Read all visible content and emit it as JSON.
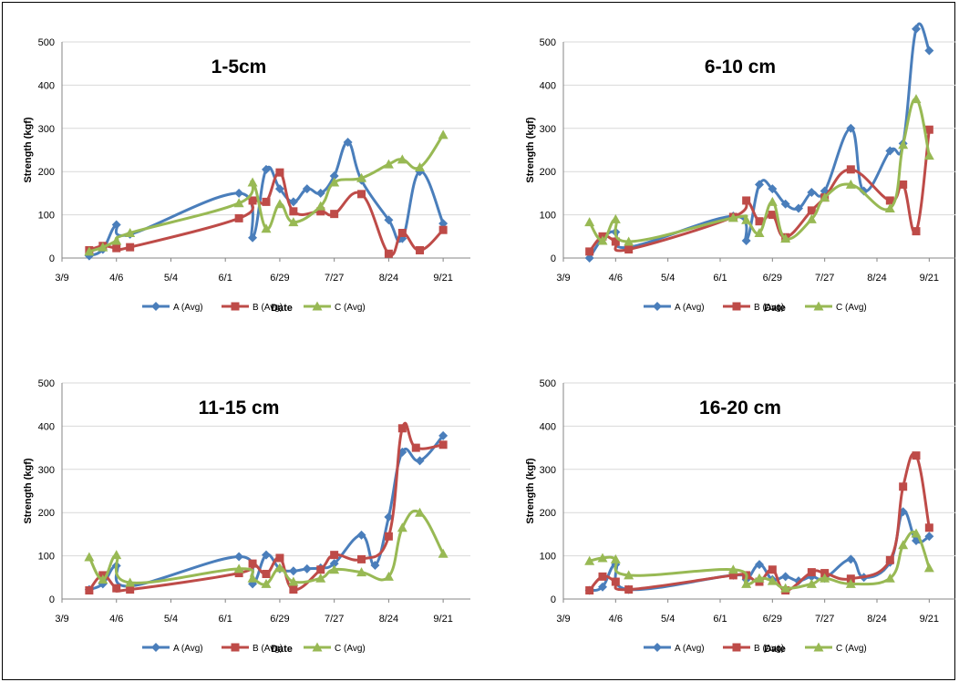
{
  "colors": {
    "A": "#4A7EBB",
    "B": "#BE4B48",
    "C": "#98B954",
    "grid": "#d9d9d9",
    "axis": "#868686"
  },
  "chart_data": [
    {
      "type": "line",
      "title": "1-5cm",
      "xlabel": "Date",
      "ylabel": "Strength (kgf)",
      "ylim": [
        0,
        500
      ],
      "yticks": [
        "0",
        "100",
        "200",
        "300",
        "400",
        "500"
      ],
      "xlim": [
        "3/9",
        "10/5"
      ],
      "xticks": [
        "3/9",
        "4/6",
        "5/4",
        "6/1",
        "6/29",
        "7/27",
        "8/24",
        "9/21"
      ],
      "grid": "horizontal",
      "legend": "bottom",
      "series": [
        {
          "name": "A (Avg)",
          "x": [
            "3/23",
            "3/30",
            "4/6",
            "4/13",
            "6/8",
            "6/15",
            "6/22",
            "6/29",
            "7/6",
            "7/13",
            "7/20",
            "7/27",
            "8/3",
            "8/10",
            "8/24",
            "8/31",
            "9/9",
            "9/21"
          ],
          "y": [
            5,
            20,
            77,
            55,
            150,
            47,
            205,
            160,
            130,
            160,
            150,
            190,
            268,
            180,
            88,
            45,
            200,
            80
          ]
        },
        {
          "name": "B (Avg)",
          "x": [
            "3/23",
            "3/30",
            "4/6",
            "4/13",
            "6/8",
            "6/15",
            "6/22",
            "6/29",
            "7/6",
            "7/20",
            "7/27",
            "8/10",
            "8/24",
            "8/31",
            "9/9",
            "9/21"
          ],
          "y": [
            18,
            28,
            23,
            25,
            92,
            133,
            130,
            198,
            108,
            108,
            102,
            148,
            10,
            58,
            18,
            65
          ]
        },
        {
          "name": "C (Avg)",
          "x": [
            "3/23",
            "3/30",
            "4/6",
            "4/13",
            "6/8",
            "6/15",
            "6/22",
            "6/29",
            "7/6",
            "7/20",
            "7/27",
            "8/10",
            "8/24",
            "8/31",
            "9/9",
            "9/21"
          ],
          "y": [
            15,
            25,
            40,
            58,
            127,
            175,
            68,
            125,
            83,
            120,
            175,
            185,
            217,
            228,
            210,
            285
          ]
        }
      ]
    },
    {
      "type": "line",
      "title": "6-10 cm",
      "xlabel": "Date",
      "ylabel": "Strength (kgf)",
      "ylim": [
        0,
        500
      ],
      "yticks": [
        "0",
        "100",
        "200",
        "300",
        "400",
        "500"
      ],
      "xlim": [
        "3/9",
        "10/5"
      ],
      "xticks": [
        "3/9",
        "4/6",
        "5/4",
        "6/1",
        "6/29",
        "7/27",
        "8/24",
        "9/21"
      ],
      "grid": "horizontal",
      "legend": "bottom",
      "series": [
        {
          "name": "A (Avg)",
          "x": [
            "3/23",
            "3/30",
            "4/6",
            "4/13",
            "6/8",
            "6/15",
            "6/22",
            "6/29",
            "7/6",
            "7/13",
            "7/20",
            "7/27",
            "8/10",
            "8/17",
            "8/31",
            "9/7",
            "9/14",
            "9/21"
          ],
          "y": [
            0,
            45,
            60,
            25,
            97,
            40,
            170,
            160,
            125,
            115,
            152,
            155,
            300,
            155,
            248,
            265,
            530,
            480
          ]
        },
        {
          "name": "B (Avg)",
          "x": [
            "3/23",
            "3/30",
            "4/6",
            "4/13",
            "6/8",
            "6/15",
            "6/22",
            "6/29",
            "7/6",
            "7/20",
            "7/27",
            "8/10",
            "8/31",
            "9/7",
            "9/14",
            "9/21"
          ],
          "y": [
            15,
            50,
            38,
            20,
            95,
            133,
            85,
            100,
            48,
            110,
            140,
            205,
            133,
            170,
            62,
            297
          ]
        },
        {
          "name": "C (Avg)",
          "x": [
            "3/23",
            "3/30",
            "4/6",
            "4/13",
            "6/8",
            "6/15",
            "6/22",
            "6/29",
            "7/6",
            "7/20",
            "7/27",
            "8/10",
            "8/31",
            "9/7",
            "9/14",
            "9/21"
          ],
          "y": [
            83,
            40,
            90,
            38,
            93,
            88,
            58,
            130,
            45,
            90,
            140,
            170,
            115,
            262,
            368,
            237
          ]
        }
      ]
    },
    {
      "type": "line",
      "title": "11-15 cm",
      "xlabel": "Date",
      "ylabel": "Strength (kgf)",
      "ylim": [
        0,
        500
      ],
      "yticks": [
        "0",
        "100",
        "200",
        "300",
        "400",
        "500"
      ],
      "xlim": [
        "3/9",
        "10/5"
      ],
      "xticks": [
        "3/9",
        "4/6",
        "5/4",
        "6/1",
        "6/29",
        "7/27",
        "8/24",
        "9/21"
      ],
      "grid": "horizontal",
      "legend": "bottom",
      "series": [
        {
          "name": "A (Avg)",
          "x": [
            "3/23",
            "3/30",
            "4/6",
            "4/13",
            "6/8",
            "6/15",
            "6/22",
            "6/29",
            "7/6",
            "7/13",
            "7/20",
            "7/27",
            "8/10",
            "8/17",
            "8/24",
            "8/31",
            "9/9",
            "9/21"
          ],
          "y": [
            22,
            35,
            77,
            30,
            98,
            35,
            102,
            70,
            65,
            70,
            72,
            82,
            148,
            78,
            190,
            340,
            320,
            378
          ]
        },
        {
          "name": "B (Avg)",
          "x": [
            "3/23",
            "3/30",
            "4/6",
            "4/13",
            "6/8",
            "6/15",
            "6/22",
            "6/29",
            "7/6",
            "7/20",
            "7/27",
            "8/10",
            "8/24",
            "8/31",
            "9/7",
            "9/21"
          ],
          "y": [
            20,
            55,
            25,
            22,
            60,
            82,
            58,
            95,
            22,
            68,
            102,
            92,
            145,
            395,
            350,
            357
          ]
        },
        {
          "name": "C (Avg)",
          "x": [
            "3/23",
            "3/30",
            "4/6",
            "4/13",
            "6/8",
            "6/15",
            "6/22",
            "6/29",
            "7/6",
            "7/20",
            "7/27",
            "8/10",
            "8/24",
            "8/31",
            "9/9",
            "9/21"
          ],
          "y": [
            97,
            45,
            102,
            38,
            70,
            48,
            35,
            72,
            40,
            48,
            68,
            62,
            52,
            165,
            200,
            105
          ]
        }
      ]
    },
    {
      "type": "line",
      "title": "16-20 cm",
      "xlabel": "Date",
      "ylabel": "Strength (kgf)",
      "ylim": [
        0,
        500
      ],
      "yticks": [
        "0",
        "100",
        "200",
        "300",
        "400",
        "500"
      ],
      "xlim": [
        "3/9",
        "10/5"
      ],
      "xticks": [
        "3/9",
        "4/6",
        "5/4",
        "6/1",
        "6/29",
        "7/27",
        "8/24",
        "9/21"
      ],
      "grid": "horizontal",
      "legend": "bottom",
      "series": [
        {
          "name": "A (Avg)",
          "x": [
            "3/23",
            "3/30",
            "4/6",
            "4/13",
            "6/8",
            "6/15",
            "6/22",
            "6/29",
            "7/6",
            "7/13",
            "7/20",
            "7/27",
            "8/10",
            "8/17",
            "8/31",
            "9/7",
            "9/14",
            "9/21"
          ],
          "y": [
            20,
            28,
            80,
            22,
            55,
            45,
            80,
            45,
            52,
            42,
            52,
            48,
            92,
            50,
            85,
            202,
            135,
            145
          ]
        },
        {
          "name": "B (Avg)",
          "x": [
            "3/23",
            "3/30",
            "4/6",
            "4/13",
            "6/8",
            "6/15",
            "6/22",
            "6/29",
            "7/6",
            "7/20",
            "7/27",
            "8/10",
            "8/31",
            "9/7",
            "9/14",
            "9/21"
          ],
          "y": [
            20,
            52,
            40,
            22,
            55,
            55,
            40,
            68,
            20,
            62,
            60,
            47,
            90,
            260,
            332,
            165
          ]
        },
        {
          "name": "C (Avg)",
          "x": [
            "3/23",
            "3/30",
            "4/6",
            "4/13",
            "6/8",
            "6/15",
            "6/22",
            "6/29",
            "7/6",
            "7/20",
            "7/27",
            "8/10",
            "8/31",
            "9/7",
            "9/14",
            "9/21"
          ],
          "y": [
            88,
            95,
            92,
            55,
            68,
            35,
            48,
            42,
            25,
            35,
            48,
            35,
            48,
            125,
            152,
            72
          ]
        }
      ]
    }
  ]
}
